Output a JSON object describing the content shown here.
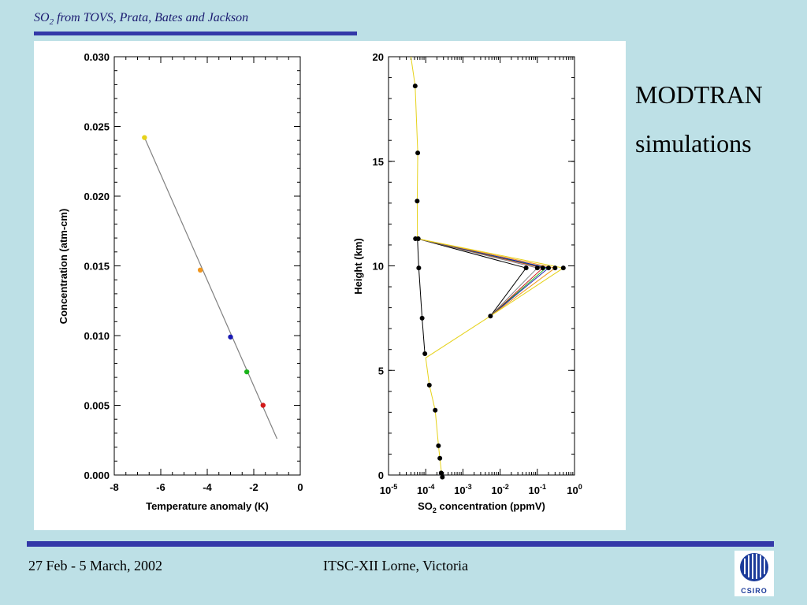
{
  "slide": {
    "title_prefix": "SO",
    "title_sub": "2",
    "title_rest": " from TOVS, Prata, Bates and Jackson",
    "side_line1": "MODTRAN",
    "side_line2": "simulations",
    "footer_left": "27 Feb - 5 March, 2002",
    "footer_center": "ITSC-XII Lorne, Victoria",
    "logo_text": "CSIRO"
  },
  "chart_data": [
    {
      "type": "scatter",
      "xlabel": "Temperature anomaly (K)",
      "ylabel": "Concentration (atm-cm)",
      "xlim": [
        -8,
        0
      ],
      "ylim": [
        0,
        0.03
      ],
      "xticks": [
        "-8",
        "-6",
        "-4",
        "-2",
        "0"
      ],
      "yticks": [
        "0.000",
        "0.005",
        "0.010",
        "0.015",
        "0.020",
        "0.025",
        "0.030"
      ],
      "points": [
        {
          "x": -6.7,
          "y": 0.0242,
          "color": "#e6d21a"
        },
        {
          "x": -4.3,
          "y": 0.0147,
          "color": "#f0961e"
        },
        {
          "x": -3.0,
          "y": 0.0099,
          "color": "#1a1ab4"
        },
        {
          "x": -2.3,
          "y": 0.0074,
          "color": "#1ab41a"
        },
        {
          "x": -1.6,
          "y": 0.005,
          "color": "#d21a1a"
        }
      ],
      "fit_line": {
        "x": [
          -6.7,
          -1.0
        ],
        "y": [
          0.0242,
          0.0026
        ],
        "color": "#808080"
      }
    },
    {
      "type": "line",
      "xscale": "log",
      "xlabel_prefix": "SO",
      "xlabel_sub": "2",
      "xlabel_rest": " concentration (ppmV)",
      "ylabel": "Height (km)",
      "xlim": [
        1e-05,
        1
      ],
      "ylim": [
        0,
        20
      ],
      "xticks": [
        {
          "base": "10",
          "exp": "-5"
        },
        {
          "base": "10",
          "exp": "-4"
        },
        {
          "base": "10",
          "exp": "-3"
        },
        {
          "base": "10",
          "exp": "-2"
        },
        {
          "base": "10",
          "exp": "-1"
        },
        {
          "base": "10",
          "exp": "0"
        }
      ],
      "yticks": [
        "0",
        "5",
        "10",
        "15",
        "20"
      ],
      "profile_points": [
        {
          "x": 5.2e-05,
          "y": 18.6
        },
        {
          "x": 6.1e-05,
          "y": 15.4
        },
        {
          "x": 5.9e-05,
          "y": 13.1
        },
        {
          "x": 5.3e-05,
          "y": 11.3
        },
        {
          "x": 6.3e-05,
          "y": 11.3
        },
        {
          "x": 6.5e-05,
          "y": 9.9
        },
        {
          "x": 8e-05,
          "y": 7.5
        },
        {
          "x": 9.5e-05,
          "y": 5.8
        },
        {
          "x": 0.000125,
          "y": 4.3
        },
        {
          "x": 0.00018,
          "y": 3.1
        },
        {
          "x": 0.00022,
          "y": 1.4
        },
        {
          "x": 0.00024,
          "y": 0.8
        },
        {
          "x": 0.00026,
          "y": 0.1
        },
        {
          "x": 0.00028,
          "y": -0.1
        }
      ],
      "plume_points": [
        {
          "x": 0.05,
          "y": 9.9
        },
        {
          "x": 0.1,
          "y": 9.9
        },
        {
          "x": 0.14,
          "y": 9.9
        },
        {
          "x": 0.2,
          "y": 9.9
        },
        {
          "x": 0.3,
          "y": 9.9
        },
        {
          "x": 0.5,
          "y": 9.9
        },
        {
          "x": 0.0055,
          "y": 7.6
        }
      ],
      "series": [
        {
          "color": "#000000",
          "peak": 0.05
        },
        {
          "color": "#808080",
          "peak": 0.1
        },
        {
          "color": "#d21a1a",
          "peak": 0.14
        },
        {
          "color": "#1ab41a",
          "peak": 0.17
        },
        {
          "color": "#1a1ab4",
          "peak": 0.2
        },
        {
          "color": "#f0961e",
          "peak": 0.3
        },
        {
          "color": "#e6d21a",
          "peak": 0.5
        }
      ],
      "peak_height": 9.9,
      "upper_joint": {
        "x": 6e-05,
        "y": 11.3
      },
      "lower_joint": {
        "x": 0.0055,
        "y": 7.6
      },
      "tail_yellow": [
        {
          "x": 4e-05,
          "y": 20.0
        },
        {
          "x": 5.2e-05,
          "y": 18.6
        },
        {
          "x": 6.1e-05,
          "y": 15.4
        },
        {
          "x": 5.9e-05,
          "y": 13.1
        },
        {
          "x": 6e-05,
          "y": 11.3
        }
      ],
      "yellow_lower": [
        {
          "x": 0.0055,
          "y": 7.6
        },
        {
          "x": 0.0001,
          "y": 5.6
        },
        {
          "x": 0.000125,
          "y": 4.3
        },
        {
          "x": 0.00018,
          "y": 3.1
        },
        {
          "x": 0.00022,
          "y": 1.4
        },
        {
          "x": 0.00024,
          "y": 0.8
        },
        {
          "x": 0.00027,
          "y": 0.0
        }
      ],
      "black_lower": [
        {
          "x": 6e-05,
          "y": 11.3
        },
        {
          "x": 6.5e-05,
          "y": 9.9
        },
        {
          "x": 8e-05,
          "y": 7.5
        },
        {
          "x": 9.5e-05,
          "y": 5.8
        }
      ]
    }
  ]
}
